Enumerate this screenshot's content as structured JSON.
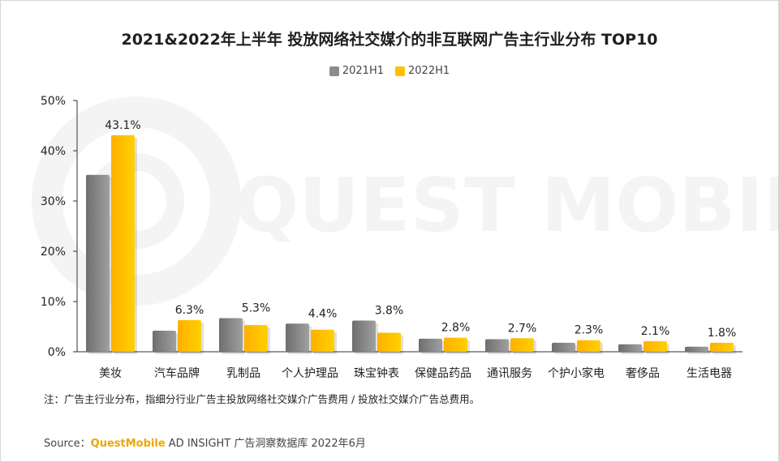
{
  "title": "2021&2022年上半年 投放网络社交媒介的非互联网广告主行业分布 TOP10",
  "note": "注：广告主行业分布，指细分行业广告主投放网络社交媒介广告费用 / 投放社交媒介广告总费用。",
  "source": {
    "prefix": "Source：",
    "brand": "QuestMobile",
    "rest": "AD INSIGHT 广告洞察数据库 2022年6月"
  },
  "watermark": "QUEST MOBILE",
  "colors": {
    "s2021": "#8c8c8c",
    "s2022": "#ffc000",
    "axis": "#333333"
  },
  "chart_data": {
    "type": "bar",
    "categories": [
      "美妆",
      "汽车品牌",
      "乳制品",
      "个人护理品",
      "珠宝钟表",
      "保健品药品",
      "通讯服务",
      "个护小家电",
      "奢侈品",
      "生活电器"
    ],
    "series": [
      {
        "name": "2021H1",
        "values": [
          35.2,
          4.2,
          6.7,
          5.6,
          6.2,
          2.6,
          2.5,
          1.8,
          1.5,
          1.0
        ]
      },
      {
        "name": "2022H1",
        "values": [
          43.1,
          6.3,
          5.3,
          4.4,
          3.8,
          2.8,
          2.7,
          2.3,
          2.1,
          1.8
        ]
      }
    ],
    "data_labels": [
      "43.1%",
      "6.3%",
      "5.3%",
      "4.4%",
      "3.8%",
      "2.8%",
      "2.7%",
      "2.3%",
      "2.1%",
      "1.8%"
    ],
    "ylim": [
      0,
      50
    ],
    "yticks": [
      "0%",
      "10%",
      "20%",
      "30%",
      "40%",
      "50%"
    ],
    "legend_position": "top-center",
    "grid": false
  }
}
